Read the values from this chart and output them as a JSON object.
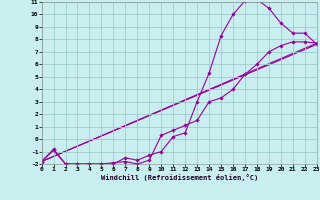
{
  "xlabel": "Windchill (Refroidissement éolien,°C)",
  "bg_color": "#c8eef0",
  "grid_color": "#a0cccc",
  "line_color": "#990099",
  "xlim": [
    0,
    23
  ],
  "ylim": [
    -2,
    11
  ],
  "xticks": [
    0,
    1,
    2,
    3,
    4,
    5,
    6,
    7,
    8,
    9,
    10,
    11,
    12,
    13,
    14,
    15,
    16,
    17,
    18,
    19,
    20,
    21,
    22,
    23
  ],
  "yticks": [
    -2,
    -1,
    0,
    1,
    2,
    3,
    4,
    5,
    6,
    7,
    8,
    9,
    10,
    11
  ],
  "curve1_x": [
    0,
    1,
    2,
    3,
    4,
    5,
    6,
    7,
    8,
    9,
    10,
    11,
    12,
    13,
    14,
    15,
    16,
    17,
    18,
    19,
    20,
    21,
    22,
    23
  ],
  "curve1_y": [
    -1.8,
    -0.9,
    -2.0,
    -2.0,
    -2.0,
    -2.0,
    -2.0,
    -1.5,
    -1.7,
    -1.3,
    -1.0,
    0.2,
    0.5,
    3.0,
    5.3,
    8.3,
    10.0,
    11.1,
    11.2,
    10.5,
    9.3,
    8.5,
    8.5,
    7.6
  ],
  "curve2_x": [
    0,
    1,
    2,
    3,
    4,
    5,
    6,
    7,
    8,
    9,
    10,
    11,
    12,
    13,
    14,
    15,
    16,
    17,
    18,
    19,
    20,
    21,
    22,
    23
  ],
  "curve2_y": [
    -1.8,
    -0.8,
    -2.0,
    -2.0,
    -2.0,
    -2.0,
    -1.9,
    -1.8,
    -2.0,
    -1.7,
    0.3,
    0.7,
    1.1,
    1.5,
    3.0,
    3.3,
    4.0,
    5.2,
    6.0,
    7.0,
    7.5,
    7.8,
    7.8,
    7.7
  ],
  "trend1_x": [
    0,
    23
  ],
  "trend1_y": [
    -1.8,
    7.7
  ],
  "trend2_x": [
    0,
    23
  ],
  "trend2_y": [
    -1.8,
    7.6
  ]
}
